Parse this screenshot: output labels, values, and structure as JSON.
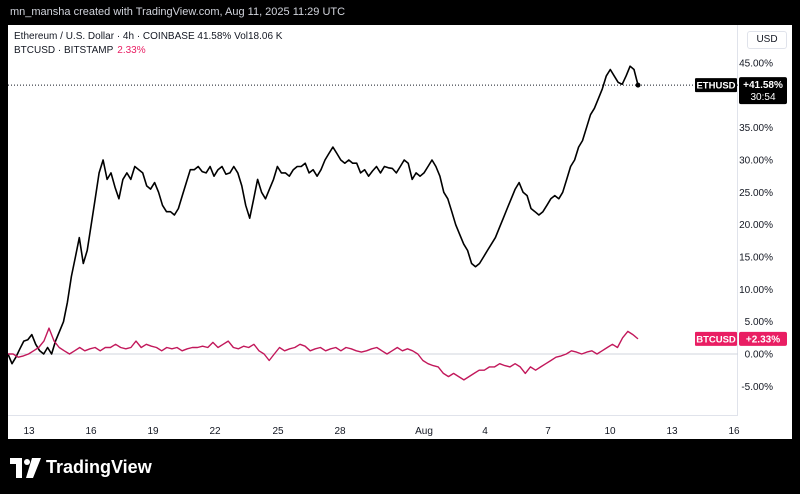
{
  "credit": "mn_mansha created with TradingView.com, Aug 11, 2025 11:29 UTC",
  "legend": {
    "main": "Ethereum / U.S. Dollar · 4h · COINBASE  41.58%  Vol18.06 K",
    "compare_symbol": "BTCUSD · BITSTAMP",
    "compare_value": "2.33%"
  },
  "currency_button": "USD",
  "brand": "TradingView",
  "colors": {
    "eth": "#000000",
    "btc": "#c2185b",
    "btc_label": "#e91e63"
  },
  "chart_data": {
    "type": "line",
    "x_labels": [
      "13",
      "16",
      "19",
      "22",
      "25",
      "28",
      "Aug",
      "4",
      "7",
      "10",
      "13",
      "16"
    ],
    "y_ticks": [
      "45.00%",
      "40.00%",
      "35.00%",
      "30.00%",
      "25.00%",
      "20.00%",
      "15.00%",
      "10.00%",
      "5.00%",
      "0.00%",
      "-5.00%"
    ],
    "ylim": [
      -8,
      47.5
    ],
    "series": [
      {
        "name": "ETHUSD",
        "label": "ETHUSD",
        "value_label": "+41.58%",
        "countdown": "30:54",
        "values": [
          0,
          -1.5,
          -0.5,
          0.8,
          2,
          2.2,
          3,
          1.5,
          0.5,
          0,
          1,
          0,
          2,
          3.5,
          5,
          8,
          12,
          15,
          18,
          14,
          16,
          20,
          24,
          28,
          30,
          27,
          28,
          25.8,
          24,
          27,
          28,
          27,
          29,
          28.5,
          28,
          26,
          25.5,
          26.5,
          25,
          23,
          22,
          22,
          21.5,
          22.5,
          24.5,
          26.5,
          28.5,
          28.5,
          29,
          28.2,
          28,
          29,
          27.5,
          28.5,
          29,
          27.8,
          28,
          29,
          28,
          26,
          23,
          21,
          24,
          27,
          25,
          24,
          25.5,
          27,
          29,
          28,
          28,
          27.5,
          28.5,
          29,
          29,
          29.5,
          28,
          28.5,
          27.5,
          28.5,
          30,
          31,
          32,
          31,
          30,
          29.5,
          30,
          29.5,
          29.5,
          28,
          28.5,
          27.5,
          28.3,
          29,
          28,
          29,
          28.8,
          28.7,
          28,
          29,
          30,
          29.5,
          27,
          28,
          27.5,
          28,
          29,
          30,
          29,
          27.5,
          25,
          24,
          22,
          20,
          18.5,
          17,
          16,
          14,
          13.5,
          14,
          15,
          16,
          17,
          18,
          19.5,
          21,
          22.5,
          24,
          25.5,
          26.5,
          25,
          24.5,
          22.5,
          22,
          21.5,
          22,
          23,
          24,
          24.5,
          24,
          25,
          27,
          29,
          30,
          32,
          33,
          35,
          37,
          38,
          39.5,
          41,
          43,
          44,
          43,
          42,
          41.7,
          43,
          44.5,
          44,
          41.58
        ],
        "bounds_x": [
          "13",
          "16",
          "19",
          "22",
          "25",
          "28",
          "Aug",
          "4",
          "7",
          "10"
        ]
      },
      {
        "name": "BTCUSD",
        "label": "BTCUSD",
        "value_label": "+2.33%",
        "values": [
          0,
          0,
          -0.5,
          -0.3,
          0,
          0.5,
          1,
          2,
          4,
          2,
          1,
          0.5,
          0,
          0.5,
          1,
          0.5,
          0.8,
          1,
          0.5,
          1,
          1,
          1.5,
          1,
          0.8,
          1,
          2,
          1,
          1.5,
          1.2,
          1,
          0.5,
          1,
          0.8,
          1,
          0.5,
          0.8,
          1,
          1,
          1.2,
          1,
          1.8,
          1,
          1.5,
          2,
          1,
          0.8,
          1.2,
          1,
          1.5,
          0.5,
          0,
          -1,
          0,
          1,
          0.5,
          0.8,
          1,
          1.5,
          1.2,
          0.5,
          0.8,
          1,
          0.5,
          0.8,
          1,
          0.5,
          1,
          0.8,
          0.5,
          0.3,
          0.5,
          0.8,
          1,
          0.5,
          0,
          0.5,
          1,
          0.5,
          0.8,
          0.5,
          0,
          -1,
          -1.5,
          -1.8,
          -2,
          -3,
          -3.5,
          -3,
          -3.5,
          -4,
          -3.5,
          -3,
          -2.5,
          -2.5,
          -2,
          -2,
          -1.5,
          -1.8,
          -2,
          -1.5,
          -2,
          -3,
          -2,
          -2.5,
          -2,
          -1.5,
          -1,
          -0.5,
          -0.3,
          0,
          0.5,
          0.3,
          0,
          0.3,
          0.5,
          0,
          0.5,
          1,
          1.5,
          1,
          2.5,
          3.5,
          3,
          2.33
        ]
      }
    ]
  }
}
